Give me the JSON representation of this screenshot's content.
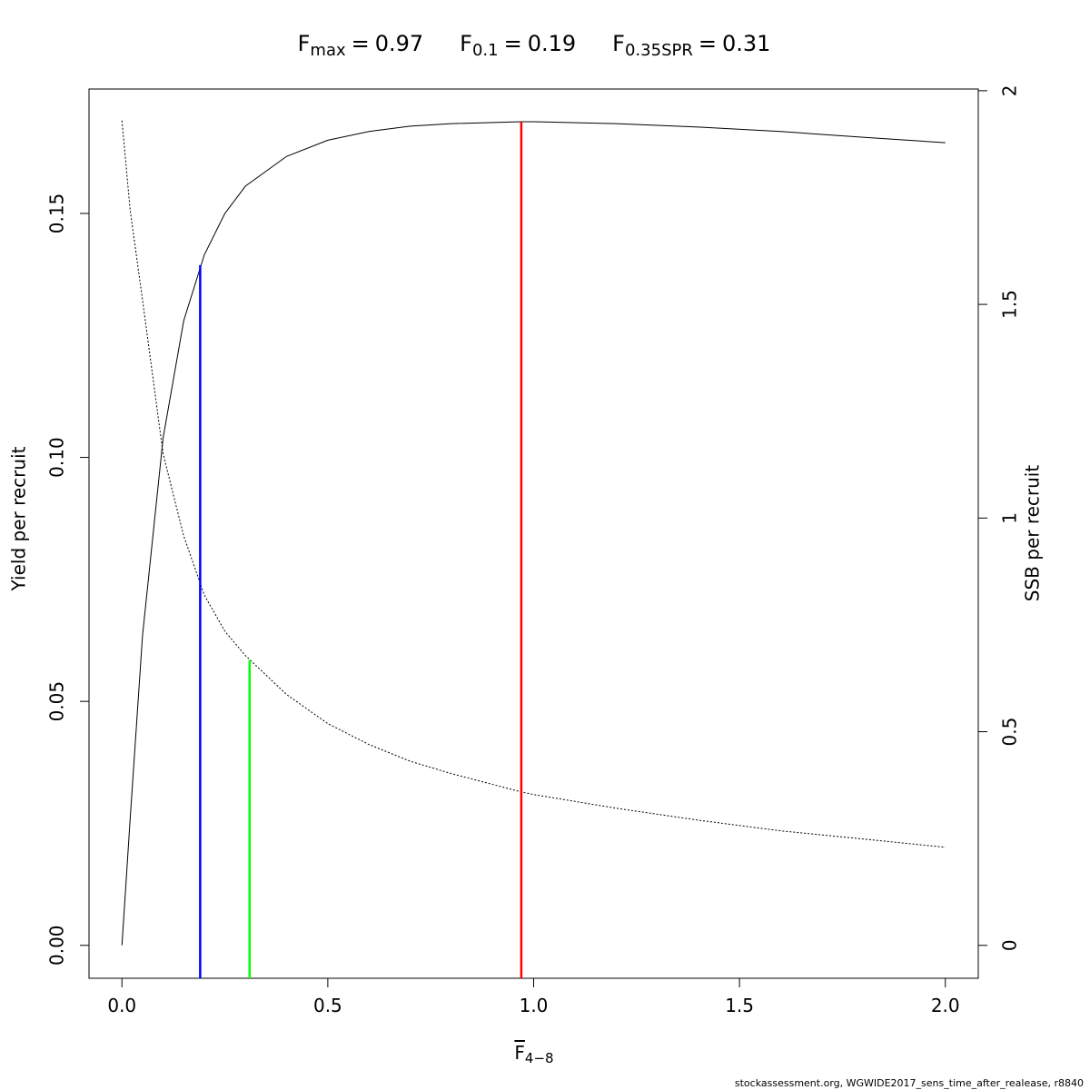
{
  "chart_data": {
    "type": "line",
    "title": [
      {
        "symbol": "F",
        "subscript": "max",
        "operator": "=",
        "value": 0.97,
        "color": "#ff0000",
        "top": 0.1688,
        "axis": "y"
      },
      {
        "symbol": "F",
        "subscript": "0.1",
        "operator": "=",
        "value": 0.19,
        "color": "#0000ff",
        "top": 0.1394,
        "axis": "y"
      },
      {
        "symbol": "F",
        "subscript": "0.35SPR",
        "operator": "=",
        "value": 0.31,
        "color": "#00ff00",
        "top": 0.667,
        "axis": "y2"
      }
    ],
    "xlabel": {
      "text": "F",
      "subscript": "4−8"
    },
    "ylabel": "Yield per recruit",
    "y2label": "SSB per recruit",
    "footnote": "stockassessment.org, WGWIDE2017_sens_time_after_realease, r8840",
    "x": [
      0,
      0.02,
      0.05,
      0.1,
      0.15,
      0.2,
      0.25,
      0.3,
      0.4,
      0.5,
      0.6,
      0.7,
      0.8,
      0.97,
      1.0,
      1.2,
      1.4,
      1.6,
      1.8,
      2.0
    ],
    "series": [
      {
        "name": "Yield per recruit",
        "color": "#000000",
        "axis": "y",
        "values": [
          0,
          0.026,
          0.0635,
          0.104,
          0.128,
          0.1415,
          0.15,
          0.1556,
          0.1617,
          0.165,
          0.1668,
          0.1679,
          0.1684,
          0.1688,
          0.1688,
          0.1684,
          0.1677,
          0.1668,
          0.1656,
          0.1645
        ]
      },
      {
        "name": "SSB per recruit",
        "color": "#000000",
        "axis": "y2",
        "dash": "2,2",
        "values": [
          1.93,
          1.72,
          1.51,
          1.15,
          0.958,
          0.82,
          0.735,
          0.678,
          0.587,
          0.519,
          0.47,
          0.431,
          0.402,
          0.359,
          0.353,
          0.321,
          0.293,
          0.268,
          0.249,
          0.2295
        ]
      }
    ],
    "xlim": [
      -0.08,
      2.08
    ],
    "xticks": [
      {
        "value": 0,
        "label": "0.0"
      },
      {
        "value": 0.5,
        "label": "0.5"
      },
      {
        "value": 1,
        "label": "1.0"
      },
      {
        "value": 1.5,
        "label": "1.5"
      },
      {
        "value": 2,
        "label": "2.0"
      }
    ],
    "ylim": [
      -0.00675,
      0.1755
    ],
    "yticks": [
      {
        "value": 0,
        "label": "0.00"
      },
      {
        "value": 0.05,
        "label": "0.05"
      },
      {
        "value": 0.1,
        "label": "0.10"
      },
      {
        "value": 0.15,
        "label": "0.15"
      }
    ],
    "y2lim": [
      -0.077,
      2.004
    ],
    "y2ticks": [
      0,
      0.5,
      1,
      1.5,
      2
    ]
  }
}
